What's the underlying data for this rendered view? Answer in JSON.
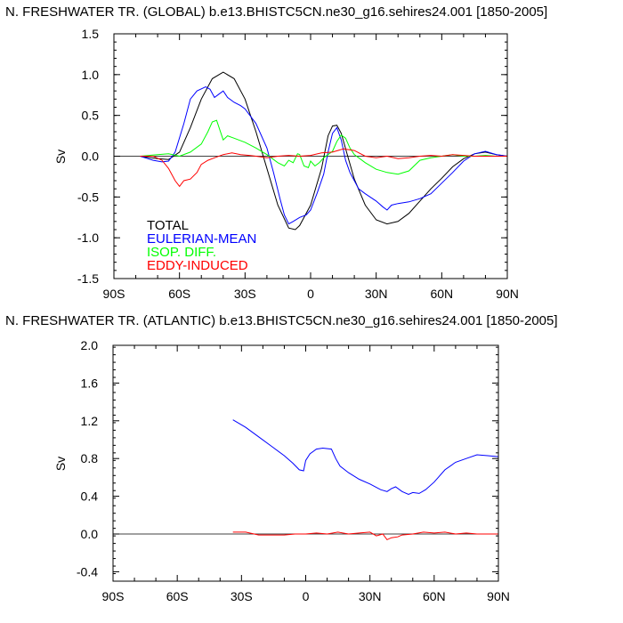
{
  "chart_data": [
    {
      "type": "line",
      "title": "N. FRESHWATER TR. (GLOBAL) b.e13.BHISTC5CN.ne30_g16.sehires24.001 [1850-2005]",
      "ylabel": "Sv",
      "xlabel": "",
      "xlim": [
        -90,
        90
      ],
      "ylim": [
        -1.5,
        1.5
      ],
      "x_ticks": [
        -90,
        -60,
        -30,
        0,
        30,
        60,
        90
      ],
      "x_tick_labels": [
        "90S",
        "60S",
        "30S",
        "0",
        "30N",
        "60N",
        "90N"
      ],
      "y_ticks": [
        -1.5,
        -1.0,
        -0.5,
        0.0,
        0.5,
        1.0,
        1.5
      ],
      "y_tick_labels": [
        "-1.5",
        "-1.0",
        "-0.5",
        "0.0",
        "0.5",
        "1.0",
        "1.5"
      ],
      "grid": false,
      "legend_position": "bottom-left",
      "zero_line": true,
      "series": [
        {
          "name": "TOTAL",
          "color": "#000000",
          "x": [
            -78,
            -70,
            -65,
            -60,
            -55,
            -50,
            -45,
            -40,
            -35,
            -30,
            -25,
            -20,
            -15,
            -10,
            -7,
            -5,
            0,
            5,
            8,
            10,
            12,
            14,
            17,
            20,
            25,
            30,
            35,
            40,
            45,
            50,
            55,
            60,
            65,
            70,
            75,
            80,
            85,
            90
          ],
          "y": [
            0.0,
            -0.03,
            -0.04,
            0.05,
            0.35,
            0.7,
            0.95,
            1.03,
            0.95,
            0.7,
            0.3,
            -0.15,
            -0.6,
            -0.88,
            -0.9,
            -0.85,
            -0.6,
            -0.15,
            0.25,
            0.37,
            0.38,
            0.28,
            0.0,
            -0.28,
            -0.6,
            -0.78,
            -0.83,
            -0.8,
            -0.7,
            -0.55,
            -0.4,
            -0.27,
            -0.13,
            -0.03,
            0.03,
            0.05,
            0.02,
            0.0
          ]
        },
        {
          "name": "EULERIAN-MEAN",
          "color": "#0000ff",
          "x": [
            -78,
            -72,
            -68,
            -65,
            -62,
            -58,
            -55,
            -52,
            -48,
            -46,
            -44,
            -42,
            -40,
            -38,
            -35,
            -32,
            -30,
            -25,
            -20,
            -17,
            -14,
            -12,
            -10,
            -8,
            -5,
            -2,
            0,
            3,
            6,
            8,
            10,
            12,
            14,
            16,
            18,
            20,
            22,
            25,
            30,
            33,
            35,
            37,
            40,
            45,
            50,
            55,
            60,
            65,
            70,
            75,
            80,
            85,
            90
          ],
          "y": [
            0.0,
            -0.05,
            -0.07,
            -0.06,
            0.05,
            0.4,
            0.7,
            0.8,
            0.85,
            0.82,
            0.72,
            0.76,
            0.8,
            0.72,
            0.66,
            0.62,
            0.58,
            0.4,
            0.1,
            -0.2,
            -0.52,
            -0.72,
            -0.83,
            -0.8,
            -0.75,
            -0.72,
            -0.66,
            -0.45,
            -0.22,
            0.05,
            0.28,
            0.35,
            0.2,
            -0.05,
            -0.2,
            -0.3,
            -0.4,
            -0.46,
            -0.55,
            -0.62,
            -0.66,
            -0.6,
            -0.58,
            -0.56,
            -0.52,
            -0.46,
            -0.33,
            -0.2,
            -0.06,
            0.03,
            0.06,
            0.02,
            0.0
          ]
        },
        {
          "name": "ISOP. DIFF.",
          "color": "#00ff00",
          "x": [
            -78,
            -70,
            -65,
            -60,
            -55,
            -50,
            -47,
            -45,
            -43,
            -41,
            -40,
            -38,
            -35,
            -30,
            -25,
            -20,
            -15,
            -12,
            -10,
            -8,
            -6,
            -5,
            -3,
            -1,
            0,
            2,
            4,
            6,
            8,
            10,
            12,
            14,
            16,
            18,
            20,
            25,
            30,
            35,
            40,
            45,
            50,
            55,
            60,
            65,
            70,
            75,
            80,
            85,
            90
          ],
          "y": [
            0.0,
            0.02,
            0.03,
            0.0,
            0.05,
            0.15,
            0.3,
            0.42,
            0.44,
            0.28,
            0.2,
            0.25,
            0.22,
            0.17,
            0.1,
            0.02,
            -0.08,
            -0.12,
            -0.05,
            -0.08,
            0.03,
            0.02,
            -0.12,
            -0.14,
            -0.06,
            -0.12,
            -0.08,
            -0.02,
            0.02,
            0.06,
            0.18,
            0.26,
            0.22,
            0.1,
            0.02,
            -0.08,
            -0.16,
            -0.2,
            -0.22,
            -0.18,
            -0.05,
            -0.02,
            0.0,
            0.02,
            0.0,
            0.0,
            0.01,
            0.0,
            0.0
          ]
        },
        {
          "name": "EDDY-INDUCED",
          "color": "#ff0000",
          "x": [
            -78,
            -72,
            -68,
            -65,
            -62,
            -60,
            -58,
            -55,
            -52,
            -50,
            -47,
            -44,
            -40,
            -36,
            -32,
            -28,
            -25,
            -20,
            -15,
            -10,
            -5,
            0,
            5,
            10,
            15,
            20,
            25,
            30,
            35,
            40,
            45,
            50,
            55,
            60,
            65,
            70,
            75,
            80,
            85,
            90
          ],
          "y": [
            0.0,
            0.0,
            -0.05,
            -0.15,
            -0.3,
            -0.37,
            -0.3,
            -0.28,
            -0.2,
            -0.1,
            -0.05,
            -0.02,
            0.02,
            0.04,
            0.02,
            0.01,
            0.0,
            -0.02,
            0.0,
            0.01,
            0.0,
            0.01,
            0.04,
            0.05,
            0.09,
            0.07,
            0.0,
            -0.02,
            0.0,
            -0.03,
            -0.02,
            0.0,
            0.01,
            0.0,
            0.02,
            0.01,
            0.0,
            0.0,
            0.0,
            0.0
          ]
        }
      ],
      "legend": [
        {
          "label": "TOTAL",
          "color": "#000000"
        },
        {
          "label": "EULERIAN-MEAN",
          "color": "#0000ff"
        },
        {
          "label": "ISOP. DIFF.",
          "color": "#00ff00"
        },
        {
          "label": "EDDY-INDUCED",
          "color": "#ff0000"
        }
      ]
    },
    {
      "type": "line",
      "title": "N. FRESHWATER TR. (ATLANTIC) b.e13.BHISTC5CN.ne30_g16.sehires24.001 [1850-2005]",
      "ylabel": "Sv",
      "xlabel": "",
      "xlim": [
        -90,
        90
      ],
      "ylim": [
        -0.5,
        2.0
      ],
      "x_ticks": [
        -90,
        -60,
        -30,
        0,
        30,
        60,
        90
      ],
      "x_tick_labels": [
        "90S",
        "60S",
        "30S",
        "0",
        "30N",
        "60N",
        "90N"
      ],
      "y_ticks": [
        -0.4,
        0.0,
        0.4,
        0.8,
        1.2,
        1.6,
        2.0
      ],
      "y_tick_labels": [
        "-0.4",
        "0.0",
        "0.4",
        "0.8",
        "1.2",
        "1.6",
        "2.0"
      ],
      "grid": false,
      "zero_line": true,
      "series": [
        {
          "name": "EULERIAN-MEAN",
          "color": "#0000ff",
          "x": [
            -34,
            -28,
            -22,
            -16,
            -10,
            -6,
            -3,
            -1,
            0,
            2,
            5,
            8,
            12,
            14,
            16,
            20,
            25,
            30,
            35,
            38,
            40,
            42,
            45,
            48,
            50,
            53,
            56,
            60,
            65,
            70,
            75,
            80,
            85,
            90
          ],
          "y": [
            1.21,
            1.13,
            1.03,
            0.93,
            0.83,
            0.75,
            0.68,
            0.67,
            0.78,
            0.85,
            0.9,
            0.91,
            0.9,
            0.8,
            0.72,
            0.65,
            0.58,
            0.53,
            0.47,
            0.45,
            0.48,
            0.5,
            0.45,
            0.42,
            0.44,
            0.43,
            0.47,
            0.55,
            0.68,
            0.76,
            0.8,
            0.84,
            0.83,
            0.82
          ]
        },
        {
          "name": "EDDY-INDUCED",
          "color": "#ff0000",
          "x": [
            -34,
            -28,
            -22,
            -16,
            -10,
            -5,
            0,
            5,
            10,
            15,
            20,
            25,
            30,
            33,
            36,
            38,
            40,
            43,
            45,
            50,
            55,
            60,
            65,
            70,
            75,
            80,
            85,
            90
          ],
          "y": [
            0.02,
            0.02,
            -0.01,
            -0.01,
            -0.01,
            0.0,
            0.0,
            0.01,
            0.0,
            0.02,
            0.0,
            0.01,
            0.02,
            -0.02,
            0.0,
            -0.06,
            -0.04,
            -0.03,
            -0.01,
            0.0,
            0.02,
            0.01,
            0.02,
            0.0,
            0.01,
            0.0,
            0.0,
            0.0
          ]
        }
      ]
    }
  ]
}
